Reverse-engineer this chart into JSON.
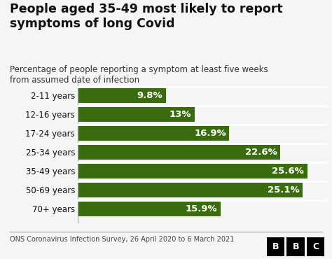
{
  "title": "People aged 35-49 most likely to report\nsymptoms of long Covid",
  "subtitle": "Percentage of people reporting a symptom at least five weeks\nfrom assumed date of infection",
  "categories": [
    "2-11 years",
    "12-16 years",
    "17-24 years",
    "25-34 years",
    "35-49 years",
    "50-69 years",
    "70+ years"
  ],
  "values": [
    9.8,
    13.0,
    16.9,
    22.6,
    25.6,
    25.1,
    15.9
  ],
  "labels": [
    "9.8%",
    "13%",
    "16.9%",
    "22.6%",
    "25.6%",
    "25.1%",
    "15.9%"
  ],
  "bar_color": "#3a6b0e",
  "background_color": "#f5f5f5",
  "text_color": "#111111",
  "label_color": "#ffffff",
  "footer": "ONS Coronavirus Infection Survey, 26 April 2020 to 6 March 2021",
  "title_fontsize": 12.5,
  "subtitle_fontsize": 8.5,
  "label_fontsize": 9.5,
  "tick_fontsize": 8.5,
  "footer_fontsize": 7.0,
  "xlim": [
    0,
    28
  ]
}
